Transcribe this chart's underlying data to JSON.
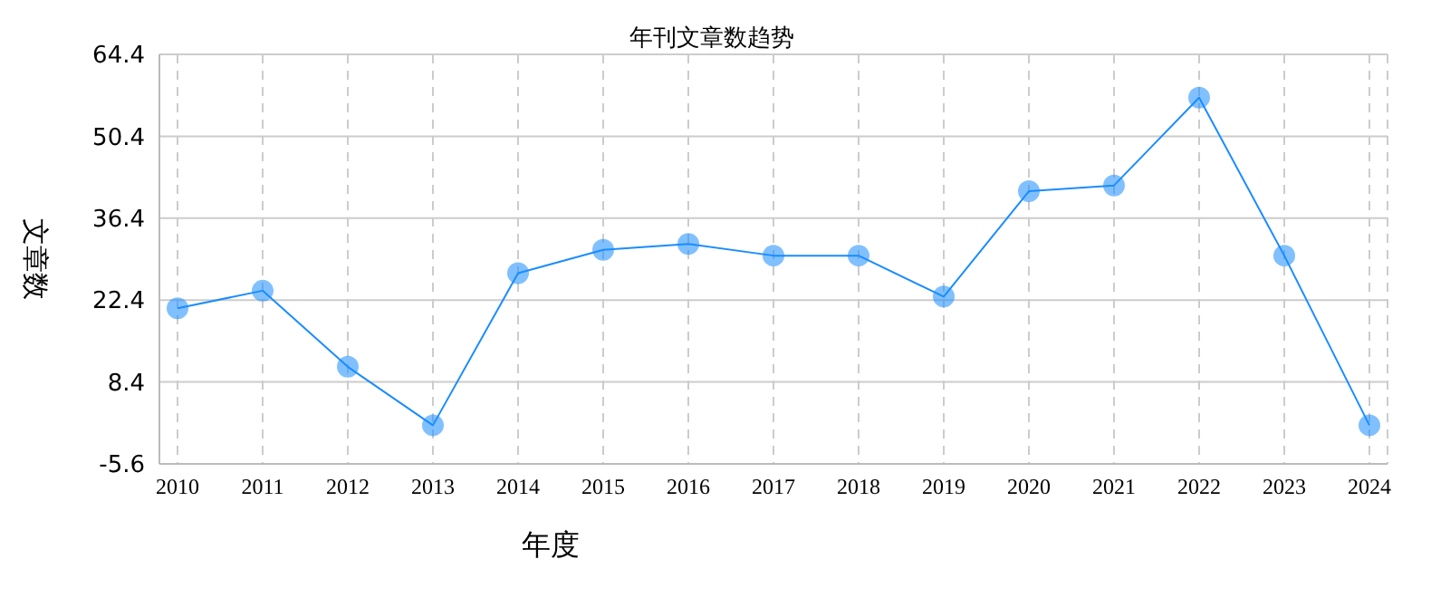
{
  "chart_data": {
    "type": "line",
    "title": "年刊文章数趋势",
    "xlabel": "年度",
    "ylabel": "文章数",
    "categories": [
      "2010",
      "2011",
      "2012",
      "2013",
      "2014",
      "2015",
      "2016",
      "2017",
      "2018",
      "2019",
      "2020",
      "2021",
      "2022",
      "2023",
      "2024"
    ],
    "series": [
      {
        "color": "#1a8cff",
        "values": [
          21,
          24,
          11,
          1,
          27,
          31,
          32,
          30,
          30,
          23,
          41,
          42,
          57,
          30,
          1
        ]
      }
    ],
    "ylim": [
      -5.6,
      64.4
    ],
    "yticks": [
      -5.6,
      8.4,
      22.4,
      36.4,
      50.4,
      64.4
    ],
    "grid": true,
    "legend": false,
    "marker": "circle",
    "line_style": "solid"
  }
}
